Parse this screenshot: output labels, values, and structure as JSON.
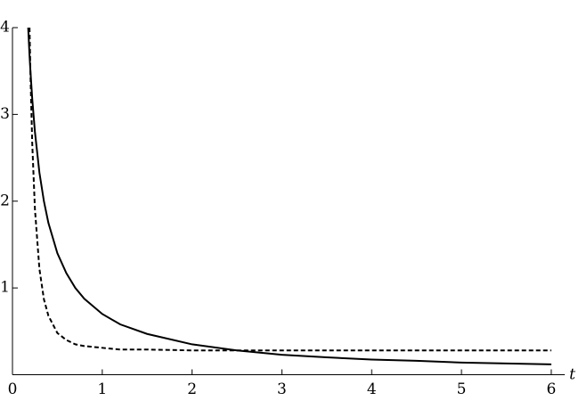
{
  "chart_data": {
    "type": "line",
    "x_label": "t",
    "x": [
      0.175,
      0.19,
      0.2,
      0.22,
      0.25,
      0.3,
      0.35,
      0.4,
      0.5,
      0.6,
      0.7,
      0.8,
      1,
      1.2,
      1.5,
      2,
      2.5,
      3,
      3.5,
      4,
      4.5,
      5,
      5.5,
      6
    ],
    "series": [
      {
        "color": "#000000",
        "dash": "solid",
        "values": [
          4.0,
          3.68,
          3.5,
          3.18,
          2.8,
          2.33,
          2.0,
          1.75,
          1.4,
          1.17,
          1.0,
          0.875,
          0.7,
          0.58,
          0.47,
          0.35,
          0.28,
          0.23,
          0.2,
          0.175,
          0.16,
          0.14,
          0.13,
          0.12
        ]
      },
      {
        "color": "#000000",
        "dash": "dashed",
        "values": [
          null,
          4.0,
          3.47,
          2.67,
          1.91,
          1.22,
          0.87,
          0.68,
          0.48,
          0.4,
          0.35,
          0.33,
          0.31,
          0.29,
          0.29,
          0.28,
          0.28,
          0.28,
          0.28,
          0.28,
          0.28,
          0.28,
          0.28,
          0.28
        ]
      }
    ],
    "xlim": [
      0,
      6.15
    ],
    "ylim": [
      0,
      4
    ],
    "xticks": [
      0,
      1,
      2,
      3,
      4,
      5,
      6
    ],
    "yticks": [
      1,
      2,
      3,
      4
    ],
    "grid": false
  }
}
